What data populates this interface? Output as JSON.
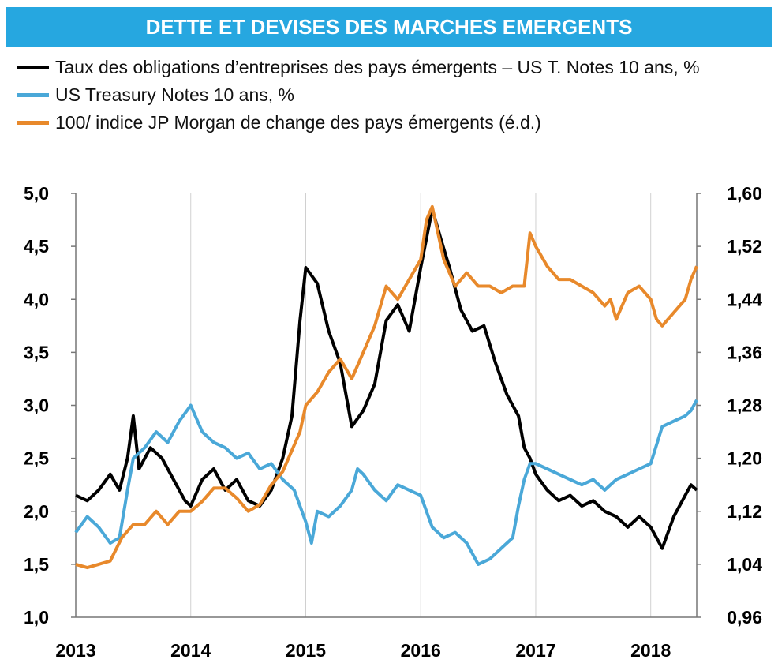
{
  "title": "DETTE ET DEVISES DES MARCHES EMERGENTS",
  "legend": [
    {
      "label": "Taux des obligations d’entreprises des pays émergents – US T. Notes 10 ans, %",
      "color": "#000000"
    },
    {
      "label": "US Treasury Notes 10 ans, %",
      "color": "#4aa8d8"
    },
    {
      "label": "100/ indice JP Morgan de change des pays émergents (é.d.)",
      "color": "#e8892b"
    }
  ],
  "chart_data": {
    "type": "line",
    "x_ticks": [
      "2013",
      "2014",
      "2015",
      "2016",
      "2017",
      "2018"
    ],
    "xlim": [
      2013.0,
      2018.4
    ],
    "y_left": {
      "ticks": [
        "5,0",
        "4,5",
        "4,0",
        "3,5",
        "3,0",
        "2,5",
        "2,0",
        "1,5",
        "1,0"
      ],
      "range": [
        1.0,
        5.0
      ]
    },
    "y_right": {
      "ticks": [
        "1,60",
        "1,52",
        "1,44",
        "1,36",
        "1,28",
        "1,20",
        "1,12",
        "1,04",
        "0,96"
      ],
      "range": [
        0.96,
        1.6
      ]
    },
    "grid": "vertical",
    "series": [
      {
        "name": "Taux des obligations d’entreprises des pays émergents – US T. Notes 10 ans, %",
        "axis": "left",
        "color": "#000000",
        "points": [
          [
            2013.0,
            2.15
          ],
          [
            2013.1,
            2.1
          ],
          [
            2013.2,
            2.2
          ],
          [
            2013.3,
            2.35
          ],
          [
            2013.38,
            2.2
          ],
          [
            2013.45,
            2.5
          ],
          [
            2013.5,
            2.9
          ],
          [
            2013.55,
            2.4
          ],
          [
            2013.65,
            2.6
          ],
          [
            2013.75,
            2.5
          ],
          [
            2013.85,
            2.3
          ],
          [
            2013.95,
            2.1
          ],
          [
            2014.0,
            2.05
          ],
          [
            2014.1,
            2.3
          ],
          [
            2014.2,
            2.4
          ],
          [
            2014.3,
            2.2
          ],
          [
            2014.4,
            2.3
          ],
          [
            2014.5,
            2.1
          ],
          [
            2014.6,
            2.05
          ],
          [
            2014.7,
            2.2
          ],
          [
            2014.8,
            2.5
          ],
          [
            2014.88,
            2.9
          ],
          [
            2014.95,
            3.8
          ],
          [
            2015.0,
            4.3
          ],
          [
            2015.1,
            4.15
          ],
          [
            2015.2,
            3.7
          ],
          [
            2015.3,
            3.4
          ],
          [
            2015.4,
            2.8
          ],
          [
            2015.5,
            2.95
          ],
          [
            2015.6,
            3.2
          ],
          [
            2015.7,
            3.8
          ],
          [
            2015.8,
            3.95
          ],
          [
            2015.9,
            3.7
          ],
          [
            2016.0,
            4.3
          ],
          [
            2016.1,
            4.85
          ],
          [
            2016.18,
            4.55
          ],
          [
            2016.25,
            4.3
          ],
          [
            2016.35,
            3.9
          ],
          [
            2016.45,
            3.7
          ],
          [
            2016.55,
            3.75
          ],
          [
            2016.65,
            3.4
          ],
          [
            2016.75,
            3.1
          ],
          [
            2016.85,
            2.9
          ],
          [
            2016.9,
            2.6
          ],
          [
            2016.95,
            2.5
          ],
          [
            2017.0,
            2.35
          ],
          [
            2017.1,
            2.2
          ],
          [
            2017.2,
            2.1
          ],
          [
            2017.3,
            2.15
          ],
          [
            2017.4,
            2.05
          ],
          [
            2017.5,
            2.1
          ],
          [
            2017.6,
            2.0
          ],
          [
            2017.7,
            1.95
          ],
          [
            2017.8,
            1.85
          ],
          [
            2017.9,
            1.95
          ],
          [
            2018.0,
            1.85
          ],
          [
            2018.1,
            1.65
          ],
          [
            2018.2,
            1.95
          ],
          [
            2018.3,
            2.15
          ],
          [
            2018.35,
            2.25
          ],
          [
            2018.4,
            2.2
          ]
        ]
      },
      {
        "name": "US Treasury Notes 10 ans, %",
        "axis": "left",
        "color": "#4aa8d8",
        "points": [
          [
            2013.0,
            1.8
          ],
          [
            2013.1,
            1.95
          ],
          [
            2013.2,
            1.85
          ],
          [
            2013.3,
            1.7
          ],
          [
            2013.38,
            1.75
          ],
          [
            2013.45,
            2.2
          ],
          [
            2013.5,
            2.5
          ],
          [
            2013.6,
            2.6
          ],
          [
            2013.7,
            2.75
          ],
          [
            2013.8,
            2.65
          ],
          [
            2013.9,
            2.85
          ],
          [
            2014.0,
            3.0
          ],
          [
            2014.1,
            2.75
          ],
          [
            2014.2,
            2.65
          ],
          [
            2014.3,
            2.6
          ],
          [
            2014.4,
            2.5
          ],
          [
            2014.5,
            2.55
          ],
          [
            2014.6,
            2.4
          ],
          [
            2014.7,
            2.45
          ],
          [
            2014.8,
            2.3
          ],
          [
            2014.9,
            2.2
          ],
          [
            2015.0,
            1.9
          ],
          [
            2015.05,
            1.7
          ],
          [
            2015.1,
            2.0
          ],
          [
            2015.2,
            1.95
          ],
          [
            2015.3,
            2.05
          ],
          [
            2015.4,
            2.2
          ],
          [
            2015.45,
            2.4
          ],
          [
            2015.5,
            2.35
          ],
          [
            2015.6,
            2.2
          ],
          [
            2015.7,
            2.1
          ],
          [
            2015.8,
            2.25
          ],
          [
            2015.9,
            2.2
          ],
          [
            2016.0,
            2.15
          ],
          [
            2016.1,
            1.85
          ],
          [
            2016.2,
            1.75
          ],
          [
            2016.3,
            1.8
          ],
          [
            2016.4,
            1.7
          ],
          [
            2016.5,
            1.5
          ],
          [
            2016.6,
            1.55
          ],
          [
            2016.7,
            1.65
          ],
          [
            2016.8,
            1.75
          ],
          [
            2016.85,
            2.05
          ],
          [
            2016.9,
            2.3
          ],
          [
            2016.95,
            2.45
          ],
          [
            2017.0,
            2.45
          ],
          [
            2017.1,
            2.4
          ],
          [
            2017.2,
            2.35
          ],
          [
            2017.3,
            2.3
          ],
          [
            2017.4,
            2.25
          ],
          [
            2017.5,
            2.3
          ],
          [
            2017.6,
            2.2
          ],
          [
            2017.7,
            2.3
          ],
          [
            2017.8,
            2.35
          ],
          [
            2017.9,
            2.4
          ],
          [
            2018.0,
            2.45
          ],
          [
            2018.1,
            2.8
          ],
          [
            2018.2,
            2.85
          ],
          [
            2018.3,
            2.9
          ],
          [
            2018.35,
            2.95
          ],
          [
            2018.4,
            3.05
          ]
        ]
      },
      {
        "name": "100/ indice JP Morgan de change des pays émergents (é.d.)",
        "axis": "right",
        "color": "#e8892b",
        "points": [
          [
            2013.0,
            1.04
          ],
          [
            2013.1,
            1.035
          ],
          [
            2013.2,
            1.04
          ],
          [
            2013.3,
            1.045
          ],
          [
            2013.4,
            1.08
          ],
          [
            2013.5,
            1.1
          ],
          [
            2013.6,
            1.1
          ],
          [
            2013.7,
            1.12
          ],
          [
            2013.8,
            1.1
          ],
          [
            2013.9,
            1.12
          ],
          [
            2014.0,
            1.12
          ],
          [
            2014.1,
            1.135
          ],
          [
            2014.2,
            1.155
          ],
          [
            2014.3,
            1.155
          ],
          [
            2014.4,
            1.14
          ],
          [
            2014.5,
            1.12
          ],
          [
            2014.6,
            1.13
          ],
          [
            2014.7,
            1.16
          ],
          [
            2014.8,
            1.18
          ],
          [
            2014.9,
            1.22
          ],
          [
            2014.95,
            1.24
          ],
          [
            2015.0,
            1.28
          ],
          [
            2015.1,
            1.3
          ],
          [
            2015.2,
            1.33
          ],
          [
            2015.3,
            1.35
          ],
          [
            2015.4,
            1.32
          ],
          [
            2015.5,
            1.36
          ],
          [
            2015.6,
            1.4
          ],
          [
            2015.7,
            1.46
          ],
          [
            2015.8,
            1.44
          ],
          [
            2015.9,
            1.47
          ],
          [
            2016.0,
            1.5
          ],
          [
            2016.05,
            1.56
          ],
          [
            2016.1,
            1.58
          ],
          [
            2016.2,
            1.5
          ],
          [
            2016.3,
            1.46
          ],
          [
            2016.4,
            1.48
          ],
          [
            2016.5,
            1.46
          ],
          [
            2016.6,
            1.46
          ],
          [
            2016.7,
            1.45
          ],
          [
            2016.8,
            1.46
          ],
          [
            2016.9,
            1.46
          ],
          [
            2016.95,
            1.54
          ],
          [
            2017.0,
            1.52
          ],
          [
            2017.1,
            1.49
          ],
          [
            2017.2,
            1.47
          ],
          [
            2017.3,
            1.47
          ],
          [
            2017.4,
            1.46
          ],
          [
            2017.5,
            1.45
          ],
          [
            2017.6,
            1.43
          ],
          [
            2017.65,
            1.44
          ],
          [
            2017.7,
            1.41
          ],
          [
            2017.8,
            1.45
          ],
          [
            2017.9,
            1.46
          ],
          [
            2017.95,
            1.45
          ],
          [
            2018.0,
            1.44
          ],
          [
            2018.05,
            1.41
          ],
          [
            2018.1,
            1.4
          ],
          [
            2018.2,
            1.42
          ],
          [
            2018.3,
            1.44
          ],
          [
            2018.35,
            1.47
          ],
          [
            2018.4,
            1.49
          ]
        ]
      }
    ]
  }
}
